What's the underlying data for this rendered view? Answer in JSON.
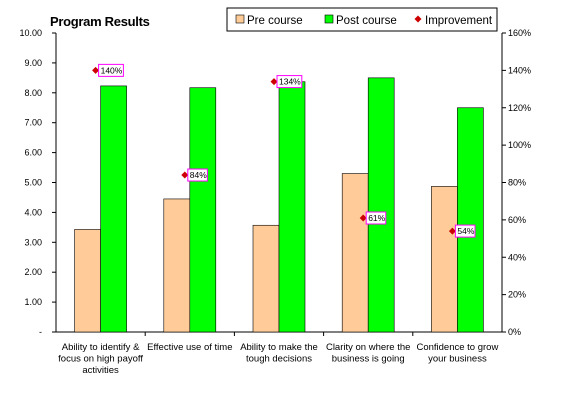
{
  "chart_data": {
    "type": "bar",
    "title": "Program Results",
    "categories": [
      [
        "Ability to identify &",
        "focus on high payoff",
        "activities"
      ],
      [
        "Effective use of time"
      ],
      [
        "Ability to make the",
        "tough decisions"
      ],
      [
        "Clarity on where the",
        "business is going"
      ],
      [
        "Confidence to grow",
        "your business"
      ]
    ],
    "series": [
      {
        "name": "Pre course",
        "axis": "left",
        "color": "#FFCC99",
        "values": [
          3.43,
          4.45,
          3.57,
          5.3,
          4.87
        ]
      },
      {
        "name": "Post course",
        "axis": "left",
        "color": "#00FF00",
        "values": [
          8.23,
          8.17,
          8.37,
          8.5,
          7.5
        ]
      },
      {
        "name": "Improvement",
        "axis": "right",
        "type": "scatter",
        "color": "#CC0000",
        "values": [
          140,
          84,
          134,
          61,
          54
        ],
        "labels": [
          "140%",
          "84%",
          "134%",
          "61%",
          "54%"
        ]
      }
    ],
    "y_left": {
      "ylim": [
        0,
        10
      ],
      "ticks": [
        "-",
        "1.00",
        "2.00",
        "3.00",
        "4.00",
        "5.00",
        "6.00",
        "7.00",
        "8.00",
        "9.00",
        "10.00"
      ]
    },
    "y_right": {
      "ylim": [
        0,
        160
      ],
      "ticks": [
        "0%",
        "20%",
        "40%",
        "60%",
        "80%",
        "100%",
        "120%",
        "140%",
        "160%"
      ]
    },
    "legend_placement": "top-right",
    "grid": false
  }
}
